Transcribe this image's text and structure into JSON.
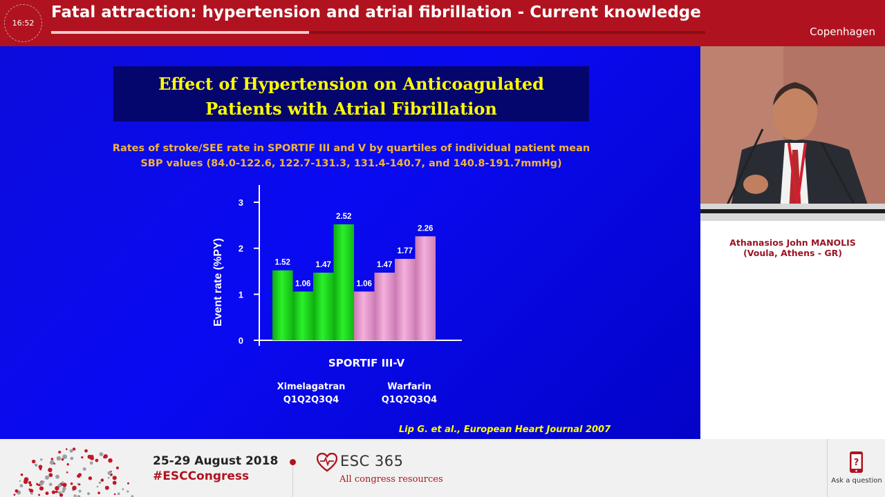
{
  "header": {
    "clock": "16:52",
    "session_title": "Fatal attraction: hypertension and atrial fibrillation - Current knowledge",
    "location": "Copenhagen",
    "progress": 0.394
  },
  "slide": {
    "title_lines": [
      "Effect of Hypertension on Anticoagulated",
      "Patients  with Atrial Fibrillation"
    ],
    "subtitle_lines": [
      "Rates of stroke/SEE rate in SPORTIF III and V by quartiles of individual patient mean",
      "SBP values (84.0-122.6, 122.7-131.3, 131.4-140.7, and 140.8-191.7mmHg)"
    ],
    "citation": "Lip G. et al., European  Heart Journal 2007"
  },
  "chart_data": {
    "type": "bar",
    "title": "",
    "xlabel": "SPORTIF III-V",
    "ylabel": "Event rate (%PY)",
    "ylim": [
      0,
      3
    ],
    "yticks": [
      "0",
      "1",
      "2",
      "3"
    ],
    "grid": false,
    "groups": [
      {
        "name_line1": "Ximelagatran",
        "name_line2": "Q1Q2Q3Q4",
        "color": "#1ee61e",
        "values": [
          1.52,
          1.06,
          1.47,
          2.52
        ],
        "labels": [
          "1.52",
          "1.06",
          "1.47",
          "2.52"
        ]
      },
      {
        "name_line1": "Warfarin",
        "name_line2": "Q1Q2Q3Q4",
        "color": "#f0a0d2",
        "values": [
          1.06,
          1.47,
          1.77,
          2.26
        ],
        "labels": [
          "1.06",
          "1.47",
          "1.77",
          "2.26"
        ]
      }
    ]
  },
  "speaker": {
    "name": "Athanasios John MANOLIS",
    "affiliation": "(Voula, Athens - GR)"
  },
  "footer": {
    "dates": "25-29 August 2018",
    "hashtag": "#ESCCongress",
    "brand": "ESC 365",
    "brand_sub": "All congress resources",
    "ask_label": "Ask a question"
  },
  "colors": {
    "brand_red": "#b0131f",
    "slide_blue": "#0a0af2",
    "title_yellow": "#ffff00",
    "subtitle_orange": "#f0b43c"
  }
}
